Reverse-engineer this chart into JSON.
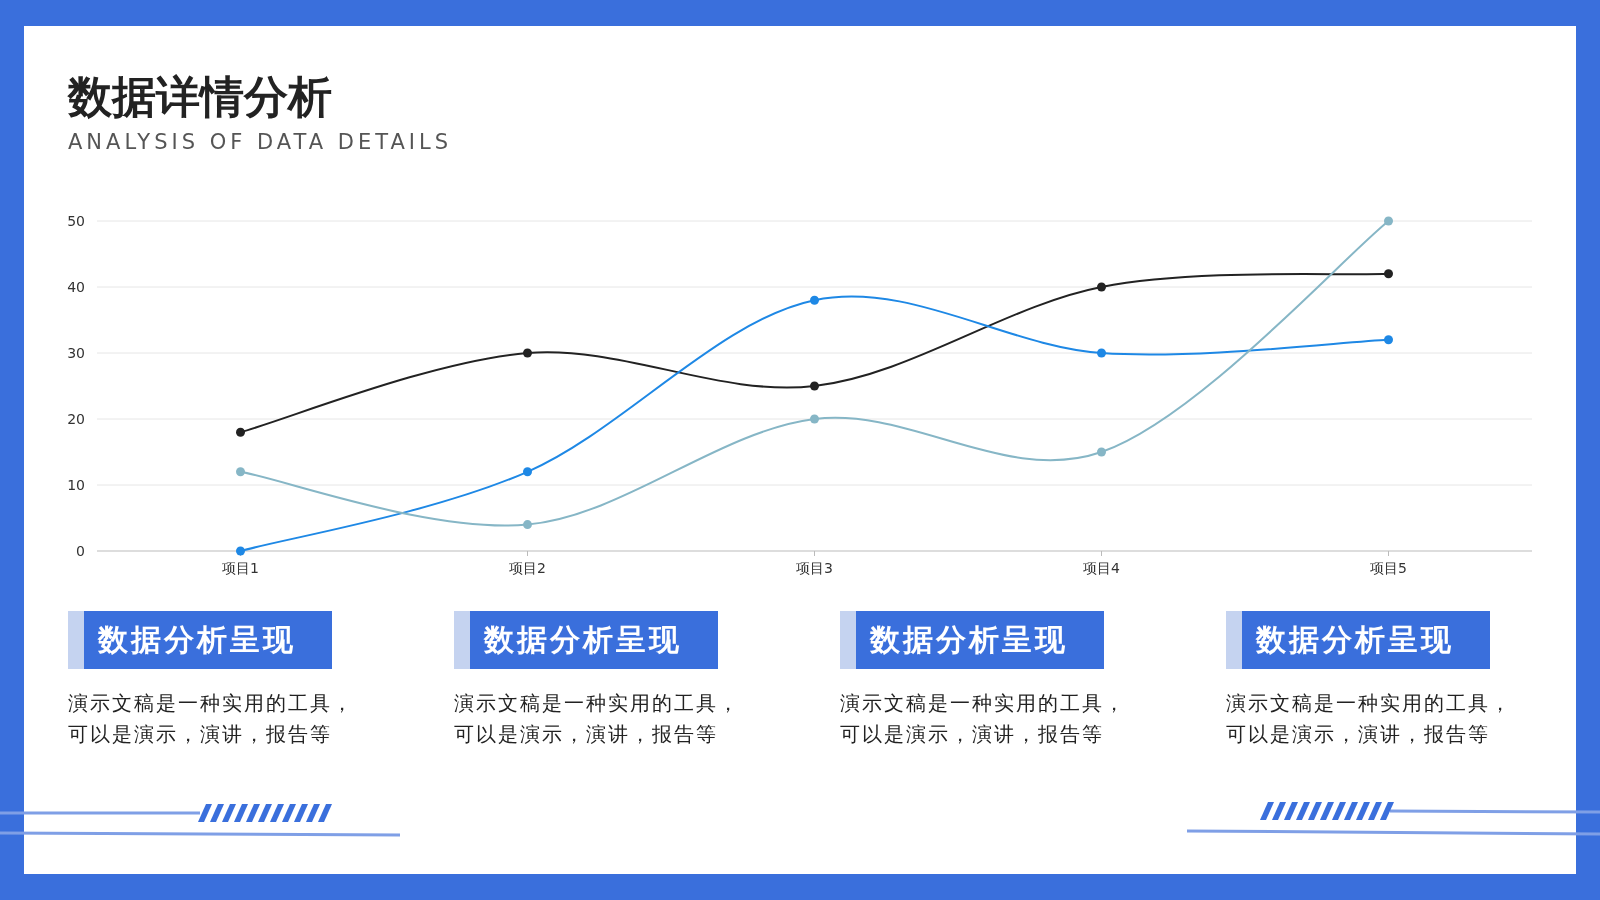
{
  "chart_data": {
    "type": "line",
    "title": "数据详情分析",
    "subtitle": "ANALYSIS OF DATA DETAILS",
    "categories": [
      "项目1",
      "项目2",
      "项目3",
      "项目4",
      "项目5"
    ],
    "series": [
      {
        "color": "#222222",
        "values": [
          18,
          30,
          25,
          40,
          42
        ]
      },
      {
        "color": "#1e88e5",
        "values": [
          0,
          12,
          38,
          30,
          32
        ]
      },
      {
        "color": "#86b6c6",
        "values": [
          12,
          4,
          20,
          15,
          50
        ]
      }
    ],
    "ylim": [
      0,
      50
    ],
    "yticks": [
      0,
      10,
      20,
      30,
      40,
      50
    ],
    "grid": "y",
    "marker": "circle",
    "annotations": [
      "数据分析呈现",
      "演示文稿是一种实用的工具，可以是演示，演讲，报告等",
      "数据分析呈现",
      "演示文稿是一种实用的工具，可以是演示，演讲，报告等",
      "数据分析呈现",
      "演示文稿是一种实用的工具，可以是演示，演讲，报告等",
      "数据分析呈现",
      "演示文稿是一种实用的工具，可以是演示，演讲，报告等"
    ]
  }
}
